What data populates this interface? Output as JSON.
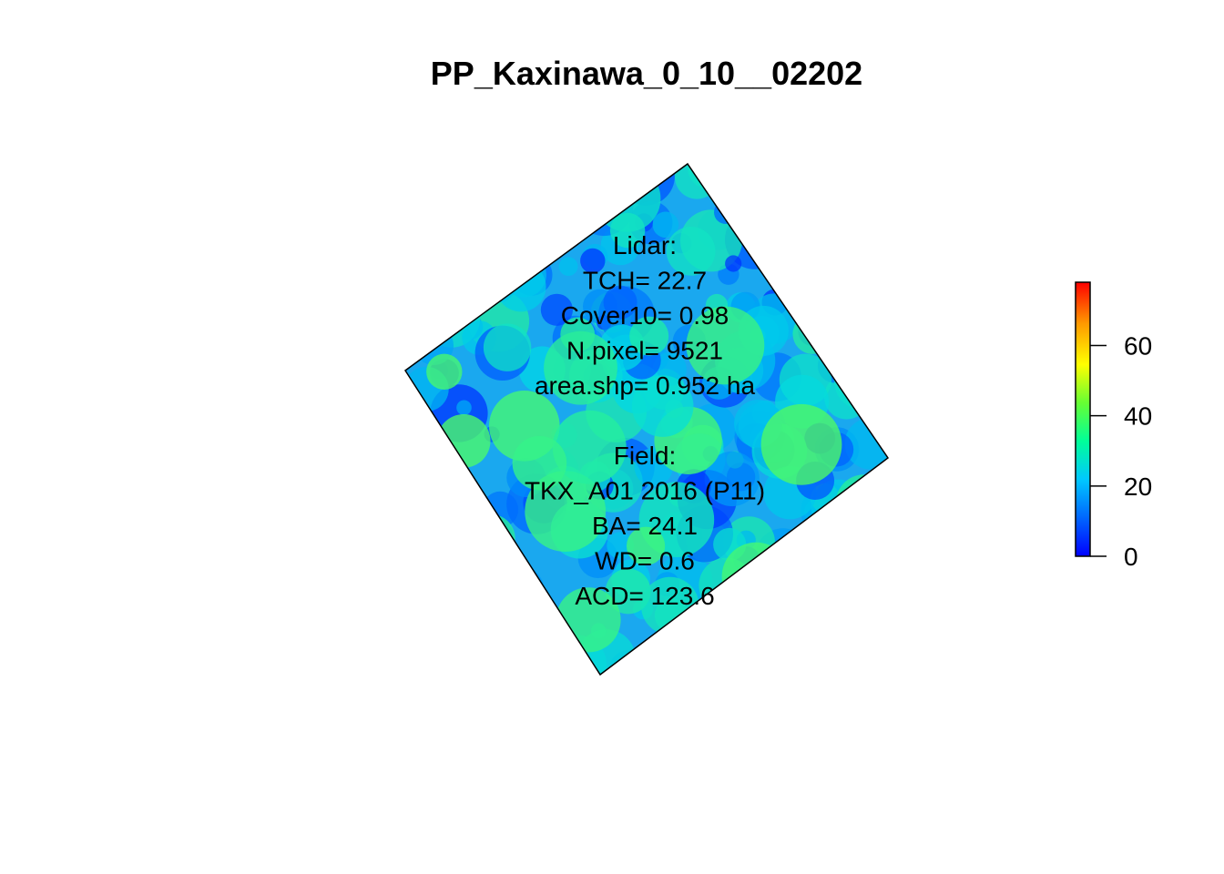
{
  "chart_data": {
    "type": "heatmap",
    "title": "PP_Kaxinawa_0_10__02202",
    "annotations": [
      "Lidar:",
      "TCH= 22.7",
      "Cover10= 0.98",
      "N.pixel= 9521",
      "area.shp= 0.952 ha",
      "",
      "Field:",
      "TKX_A01 2016 (P11)",
      "BA= 24.1",
      "WD= 0.6",
      "ACD= 123.6"
    ],
    "legend": {
      "range": [
        0,
        78
      ],
      "ticks": [
        0,
        20,
        40,
        60
      ],
      "tick_labels": [
        "0",
        "20",
        "40",
        "60"
      ],
      "colors": [
        "#0000ff",
        "#0066ff",
        "#00c8ff",
        "#00ff99",
        "#66ff33",
        "#ffff00",
        "#ff9900",
        "#ff0000"
      ],
      "placement": "right"
    },
    "raster": {
      "value_range_shown": [
        5,
        40
      ],
      "mean_height": 22.7
    }
  }
}
